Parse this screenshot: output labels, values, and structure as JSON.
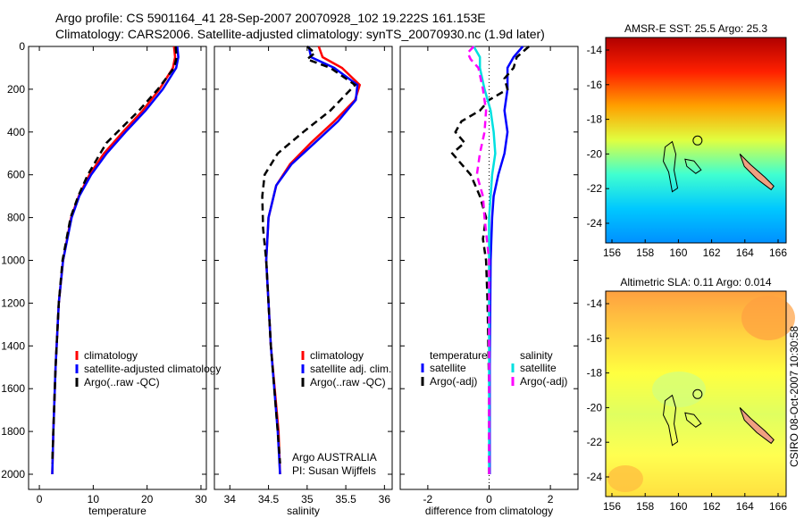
{
  "title_line1": "Argo profile: CS 5901164_41 28-Sep-2007 20070928_102 19.222S 161.153E",
  "title_line2": "Climatology: CARS2006. Satellite-adjusted climatology: synTS_20070930.nc (1.9d later)",
  "side_label": "CSIRO 08-Oct-2007 10:30:58",
  "chart_data": [
    {
      "type": "line",
      "xlabel": "temperature",
      "xlim": [
        -2,
        31
      ],
      "xticks": [
        "0",
        "10",
        "20",
        "30"
      ],
      "ylim": [
        2050,
        0
      ],
      "yticks": [
        "0",
        "200",
        "400",
        "600",
        "800",
        "1000",
        "1200",
        "1400",
        "1600",
        "1800",
        "2000"
      ],
      "legend": [
        "climatology",
        "satellite-adjusted climatology",
        "Argo(..raw -QC)"
      ],
      "series": [
        {
          "name": "climatology",
          "color": "#ff0000",
          "depth": [
            0,
            50,
            100,
            200,
            300,
            400,
            500,
            600,
            700,
            800,
            1000,
            1200,
            1500,
            1800,
            2000
          ],
          "values": [
            25.0,
            25.2,
            24.8,
            22.3,
            19.2,
            15.5,
            12.0,
            9.3,
            7.3,
            5.9,
            4.4,
            3.6,
            3.0,
            2.6,
            2.4
          ]
        },
        {
          "name": "satellite-adjusted climatology",
          "color": "#0000ff",
          "depth": [
            0,
            50,
            100,
            200,
            300,
            400,
            500,
            600,
            700,
            800,
            1000,
            1200,
            1500,
            1800,
            2000
          ],
          "values": [
            25.6,
            25.8,
            25.4,
            22.9,
            19.7,
            16.0,
            12.5,
            9.6,
            7.4,
            6.0,
            4.4,
            3.6,
            3.0,
            2.6,
            2.4
          ]
        },
        {
          "name": "Argo(..raw -QC)",
          "color": "#000000",
          "dash": true,
          "depth": [
            0,
            50,
            100,
            200,
            300,
            400,
            450,
            500,
            600,
            700,
            800,
            1000,
            1200,
            1500,
            1800,
            1950
          ],
          "values": [
            25.3,
            25.5,
            25.0,
            22.0,
            18.5,
            14.5,
            12.5,
            11.3,
            9.0,
            7.2,
            5.8,
            4.3,
            3.6,
            3.0,
            2.6,
            2.4
          ]
        }
      ]
    },
    {
      "type": "line",
      "xlabel": "salinity",
      "xlim": [
        33.8,
        36.1
      ],
      "xticks": [
        "34",
        "34.5",
        "35",
        "35.5",
        "36"
      ],
      "ylim": [
        2050,
        0
      ],
      "legend": [
        "climatology",
        "satellite adj. clim.",
        "Argo(..raw -QC)"
      ],
      "annotation": [
        "Argo AUSTRALIA",
        "PI: Susan Wijffels"
      ],
      "series": [
        {
          "name": "climatology",
          "color": "#ff0000",
          "depth": [
            0,
            50,
            100,
            180,
            250,
            350,
            450,
            550,
            650,
            800,
            1000,
            1400,
            1800,
            2000
          ],
          "values": [
            35.15,
            35.2,
            35.45,
            35.68,
            35.62,
            35.35,
            35.05,
            34.78,
            34.6,
            34.5,
            34.47,
            34.53,
            34.63,
            34.65
          ]
        },
        {
          "name": "satellite adj. clim.",
          "color": "#0000ff",
          "depth": [
            0,
            50,
            100,
            180,
            250,
            350,
            450,
            550,
            650,
            800,
            1000,
            1400,
            1800,
            2000
          ],
          "values": [
            35.02,
            35.05,
            35.35,
            35.65,
            35.63,
            35.4,
            35.1,
            34.8,
            34.6,
            34.5,
            34.47,
            34.53,
            34.62,
            34.65
          ]
        },
        {
          "name": "Argo(..raw -QC)",
          "color": "#000000",
          "dash": true,
          "depth": [
            0,
            30,
            60,
            100,
            180,
            300,
            400,
            500,
            600,
            700,
            850,
            1000,
            1400,
            1800,
            1950
          ],
          "values": [
            35.0,
            35.1,
            35.0,
            35.3,
            35.62,
            35.3,
            34.95,
            34.62,
            34.45,
            34.42,
            34.43,
            34.47,
            34.53,
            34.62,
            34.65
          ]
        }
      ]
    },
    {
      "type": "line",
      "xlabel": "difference from climatology",
      "xlim": [
        -2.9,
        2.9
      ],
      "xticks": [
        "-2",
        "0",
        "2"
      ],
      "ylim": [
        2050,
        0
      ],
      "legend_headers": [
        "temperature",
        "salinity"
      ],
      "legend": [
        "satellite",
        "Argo(-adj)",
        "satellite",
        "Argo(-adj)"
      ],
      "series": [
        {
          "name": "temperature satellite",
          "color": "#0000ff",
          "depth": [
            0,
            50,
            100,
            200,
            300,
            400,
            500,
            600,
            700,
            800,
            1000,
            1500,
            2000
          ],
          "values": [
            1.1,
            0.8,
            0.6,
            0.6,
            0.5,
            0.6,
            0.5,
            0.3,
            0.15,
            0.1,
            0.05,
            0.02,
            0.02
          ]
        },
        {
          "name": "temperature Argo(-adj)",
          "color": "#000000",
          "dash": true,
          "depth": [
            0,
            50,
            100,
            150,
            200,
            250,
            300,
            350,
            400,
            450,
            500,
            600,
            700,
            800,
            900,
            1000,
            1200,
            1600,
            2000
          ],
          "values": [
            1.3,
            0.9,
            0.8,
            0.5,
            0.6,
            0.0,
            -0.3,
            -0.9,
            -1.1,
            -0.8,
            -1.2,
            -0.6,
            -0.3,
            -0.1,
            -0.2,
            -0.1,
            -0.05,
            0,
            0
          ]
        },
        {
          "name": "salinity satellite",
          "color": "#00e0e0",
          "depth": [
            0,
            50,
            100,
            200,
            300,
            400,
            500,
            600,
            800,
            1000,
            2000
          ],
          "values": [
            -0.5,
            -0.3,
            -0.3,
            -0.15,
            0.05,
            0.15,
            0.2,
            0.1,
            0.0,
            0.0,
            0.0
          ]
        },
        {
          "name": "salinity Argo(-adj)",
          "color": "#ff00ff",
          "dash": true,
          "depth": [
            0,
            30,
            60,
            100,
            200,
            300,
            400,
            500,
            600,
            700,
            800,
            1000,
            1500,
            2000
          ],
          "values": [
            -0.5,
            -0.7,
            -0.6,
            -0.35,
            -0.2,
            -0.1,
            -0.15,
            -0.3,
            -0.4,
            -0.2,
            -0.15,
            0,
            0,
            0
          ]
        }
      ]
    }
  ],
  "maps": [
    {
      "title": "AMSR-E SST: 25.5 Argo: 25.3",
      "xticks": [
        "156",
        "158",
        "160",
        "162",
        "164",
        "166"
      ],
      "yticks": [
        "-14",
        "-16",
        "-18",
        "-20",
        "-22",
        "-24"
      ],
      "colors": [
        "#b00000",
        "#ff2000",
        "#ffa000",
        "#e0ff40",
        "#40ffd0",
        "#00c8ff",
        "#0090ff"
      ]
    },
    {
      "title": "Altimetric SLA: 0.11 Argo: 0.014",
      "xticks": [
        "156",
        "158",
        "160",
        "162",
        "164",
        "166"
      ],
      "yticks": [
        "-14",
        "-16",
        "-18",
        "-20",
        "-22",
        "-24"
      ],
      "colors": [
        "#ffa040",
        "#ffd040",
        "#ffff40",
        "#e0ff60",
        "#ffff50",
        "#ffe040"
      ]
    }
  ]
}
